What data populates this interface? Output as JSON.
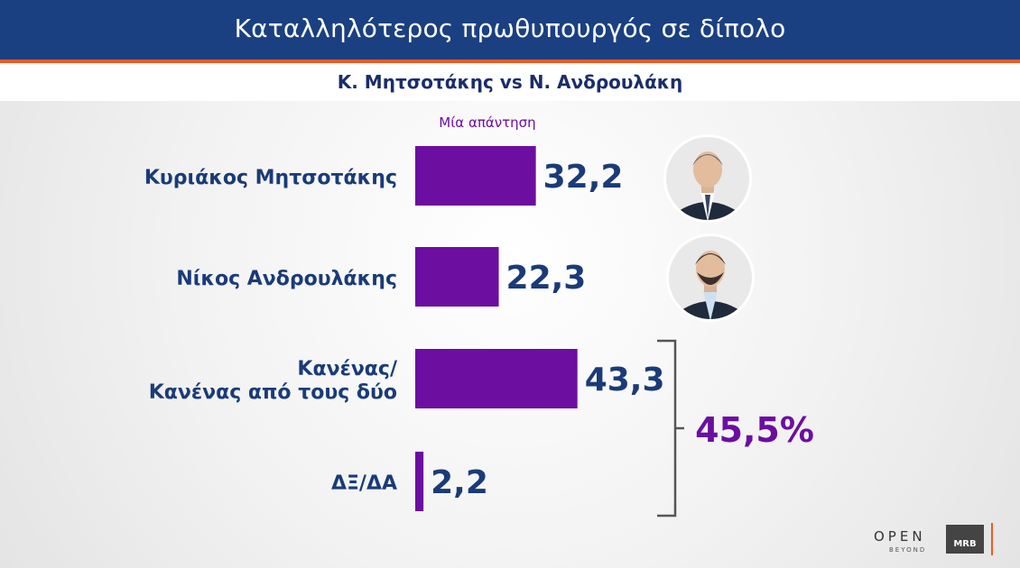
{
  "header": {
    "title": "Καταλληλότερος πρωθυπουργός σε δίπολο",
    "subtitle": "Κ. Μητσοτάκης vs Ν. Ανδρουλάκη"
  },
  "chart_data": {
    "type": "bar",
    "orientation": "horizontal",
    "title": "Καταλληλότερος πρωθυπουργός σε δίπολο",
    "subtitle": "Κ. Μητσοτάκης vs Ν. Ανδρουλάκη",
    "series_label": "Μία απάντηση",
    "categories": [
      [
        "Κυριάκος Μητσοτάκης"
      ],
      [
        "Νίκος Ανδρουλάκης"
      ],
      [
        "Κανένας/",
        "Κανένας από τους δύο"
      ],
      [
        "ΔΞ/ΔΑ"
      ]
    ],
    "values": [
      32.2,
      22.3,
      43.3,
      2.2
    ],
    "value_labels": [
      "32,2",
      "22,3",
      "43,3",
      "2,2"
    ],
    "bracket": {
      "from": 2,
      "to": 3,
      "label": "45,5%"
    },
    "bar_color": "#6c0ea0",
    "label_color": "#1a3b78",
    "bracket_label_color": "#6c0ea0",
    "xlim": [
      0,
      100
    ]
  },
  "photos": [
    {
      "name": "mitsotakis-photo",
      "row": 0
    },
    {
      "name": "androulakis-photo",
      "row": 1
    }
  ],
  "branding": {
    "open": "OPEN",
    "open_sub": "BEYOND",
    "mrb": "MRB"
  }
}
